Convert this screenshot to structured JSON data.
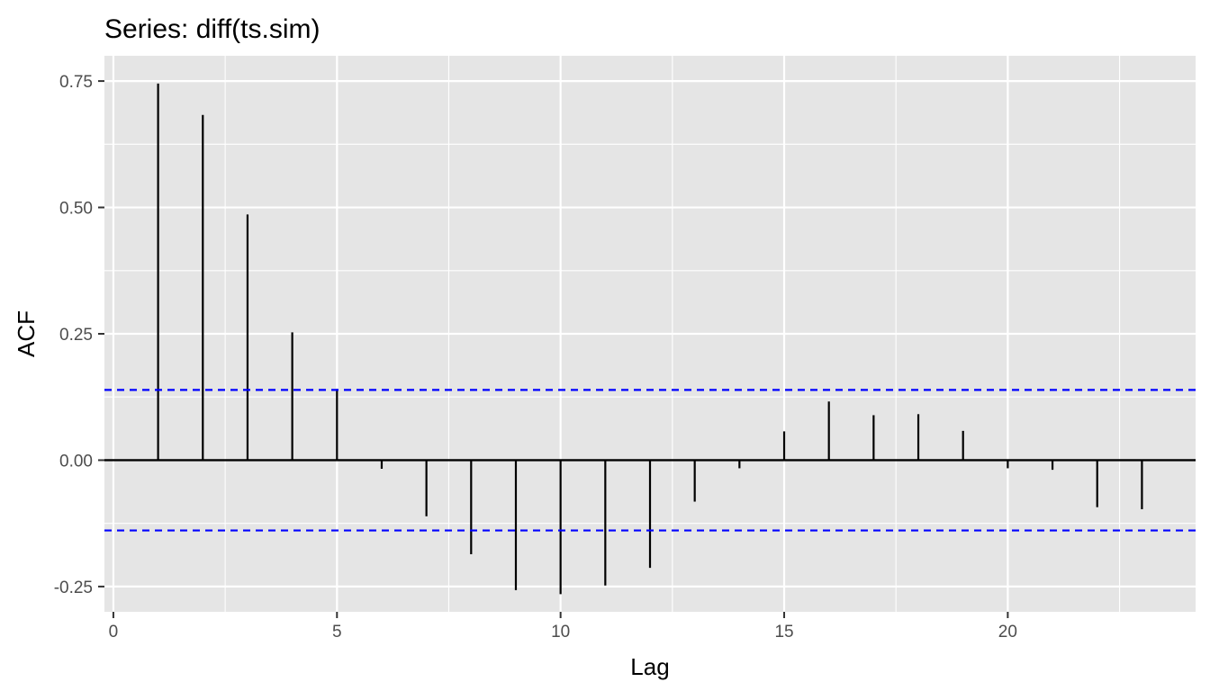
{
  "chart_data": {
    "type": "bar",
    "title": "Series: diff(ts.sim)",
    "xlabel": "Lag",
    "ylabel": "ACF",
    "x_ticks": [
      0,
      5,
      10,
      15,
      20
    ],
    "x_tick_labels": [
      "0",
      "5",
      "10",
      "15",
      "20"
    ],
    "y_ticks": [
      -0.25,
      0,
      0.25,
      0.5,
      0.75
    ],
    "y_tick_labels": [
      "-0.25",
      "0.00",
      "0.25",
      "0.50",
      "0.75"
    ],
    "xlim": [
      -0.2,
      24.2
    ],
    "ylim": [
      -0.3,
      0.8
    ],
    "lags": [
      1,
      2,
      3,
      4,
      5,
      6,
      7,
      8,
      9,
      10,
      11,
      12,
      13,
      14,
      15,
      16,
      17,
      18,
      19,
      20,
      21,
      22,
      23
    ],
    "values": [
      0.745,
      0.683,
      0.486,
      0.253,
      0.141,
      -0.017,
      -0.111,
      -0.186,
      -0.257,
      -0.265,
      -0.248,
      -0.213,
      -0.082,
      -0.016,
      0.057,
      0.116,
      0.089,
      0.091,
      0.058,
      -0.016,
      -0.019,
      -0.093,
      -0.097
    ],
    "confidence_bound": 0.139,
    "grid": true,
    "colors": {
      "panel": "#e5e5e5",
      "grid": "#ffffff",
      "bars": "#000000",
      "confidence_lines": "#0000ff"
    }
  }
}
